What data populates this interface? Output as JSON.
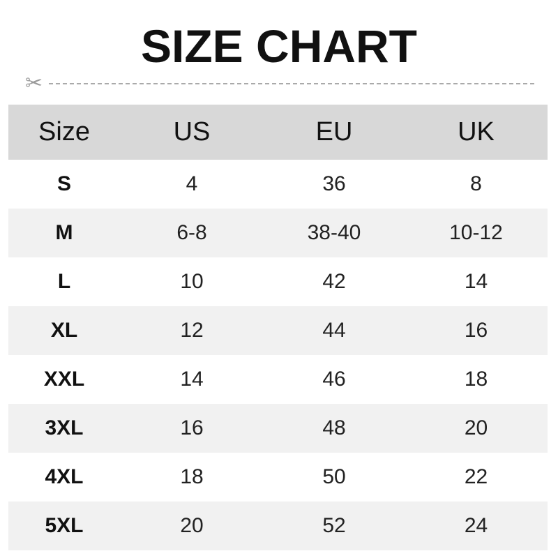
{
  "title": "SIZE CHART",
  "headers": [
    "Size",
    "US",
    "EU",
    "UK"
  ],
  "rows": [
    [
      "S",
      "4",
      "36",
      "8"
    ],
    [
      "M",
      "6-8",
      "38-40",
      "10-12"
    ],
    [
      "L",
      "10",
      "42",
      "14"
    ],
    [
      "XL",
      "12",
      "44",
      "16"
    ],
    [
      "XXL",
      "14",
      "46",
      "18"
    ],
    [
      "3XL",
      "16",
      "48",
      "20"
    ],
    [
      "4XL",
      "18",
      "50",
      "22"
    ],
    [
      "5XL",
      "20",
      "52",
      "24"
    ]
  ],
  "icons": {
    "cut": "scissors-icon"
  }
}
